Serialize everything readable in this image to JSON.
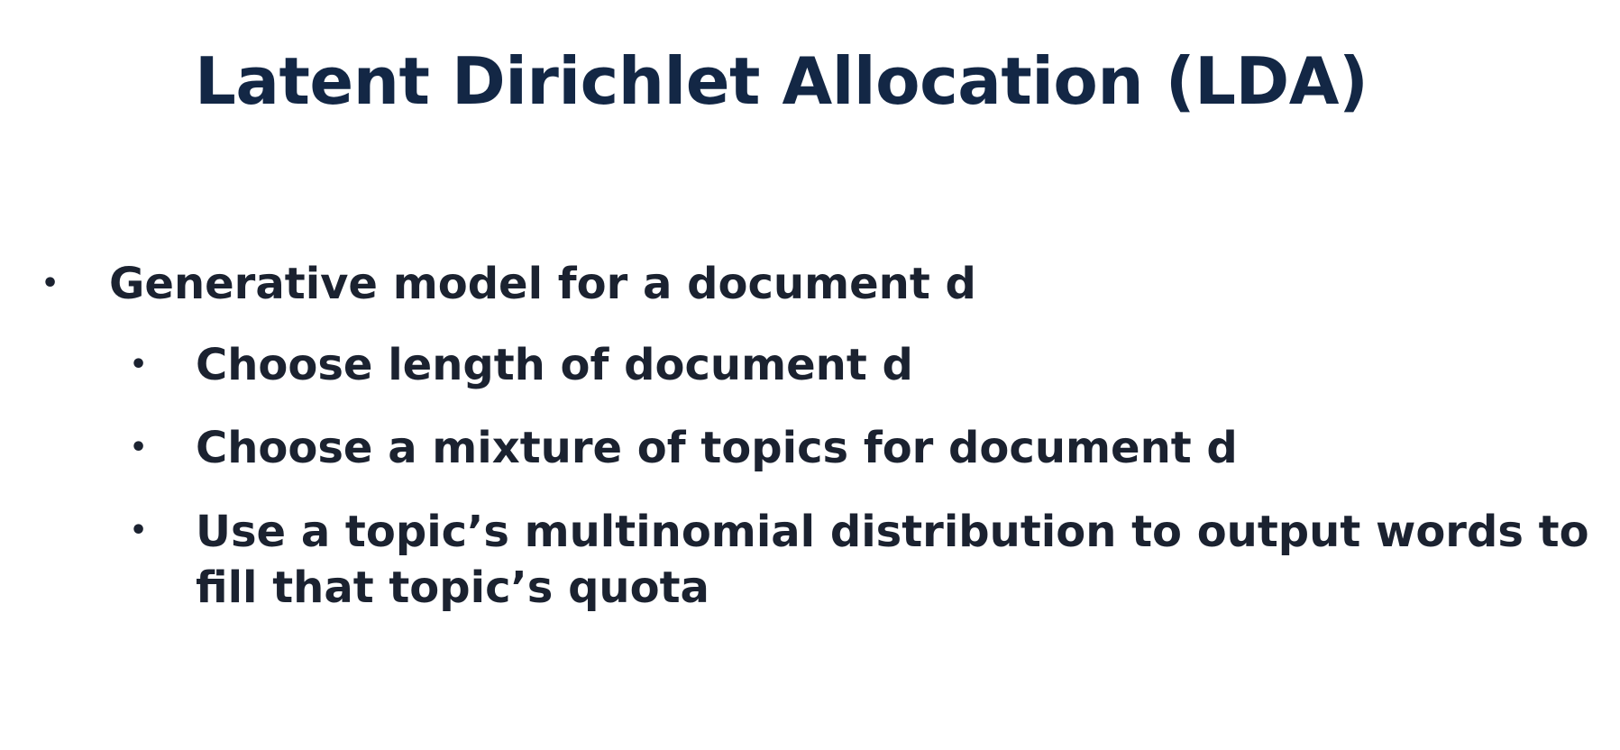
{
  "slide": {
    "title": "Latent Dirichlet Allocation (LDA)",
    "bullets": [
      {
        "text": "Generative model for a document d",
        "children": [
          {
            "text": "Choose length of document d"
          },
          {
            "text": "Choose a mixture of topics for document d"
          },
          {
            "text": "Use a topic’s multinomial distribution to output words to fill that topic’s quota"
          }
        ]
      }
    ],
    "bullet_glyph": "•",
    "colors": {
      "title": "#132745",
      "body": "#1b2230",
      "background": "#ffffff"
    }
  }
}
